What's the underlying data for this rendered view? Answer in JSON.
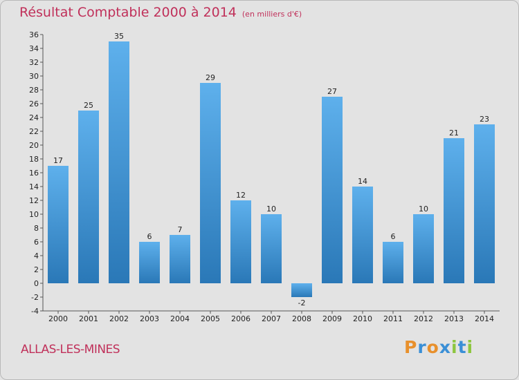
{
  "page": {
    "title": "Résultat Comptable 2000 à 2014",
    "unit": "(en milliers d'€)",
    "commune": "ALLAS-LES-MINES",
    "logo": {
      "letters": [
        "P",
        "r",
        "o",
        "x",
        "i",
        "t",
        "i"
      ],
      "colors": [
        "#e8902c",
        "#3a8fd6",
        "#e8902c",
        "#3a8fd6",
        "#8dc63f",
        "#3a8fd6",
        "#8dc63f"
      ]
    }
  },
  "colors": {
    "bar_top": "#5eb0ec",
    "bar_bottom": "#2a78b7",
    "title": "#c0305a",
    "background": "#e3e3e3"
  },
  "chart_data": {
    "type": "bar",
    "title": "Résultat Comptable 2000 à 2014",
    "subtitle": "(en milliers d'€)",
    "xlabel": "",
    "ylabel": "",
    "categories": [
      "2000",
      "2001",
      "2002",
      "2003",
      "2004",
      "2005",
      "2006",
      "2007",
      "2008",
      "2009",
      "2010",
      "2011",
      "2012",
      "2013",
      "2014"
    ],
    "values": [
      17,
      25,
      35,
      6,
      7,
      29,
      12,
      10,
      -2,
      27,
      14,
      6,
      10,
      21,
      23
    ],
    "ylim": [
      -4,
      36
    ],
    "yticks": [
      -4,
      -2,
      0,
      2,
      4,
      6,
      8,
      10,
      12,
      14,
      16,
      18,
      20,
      22,
      24,
      26,
      28,
      30,
      32,
      34,
      36
    ],
    "grid": false,
    "legend": "none"
  }
}
